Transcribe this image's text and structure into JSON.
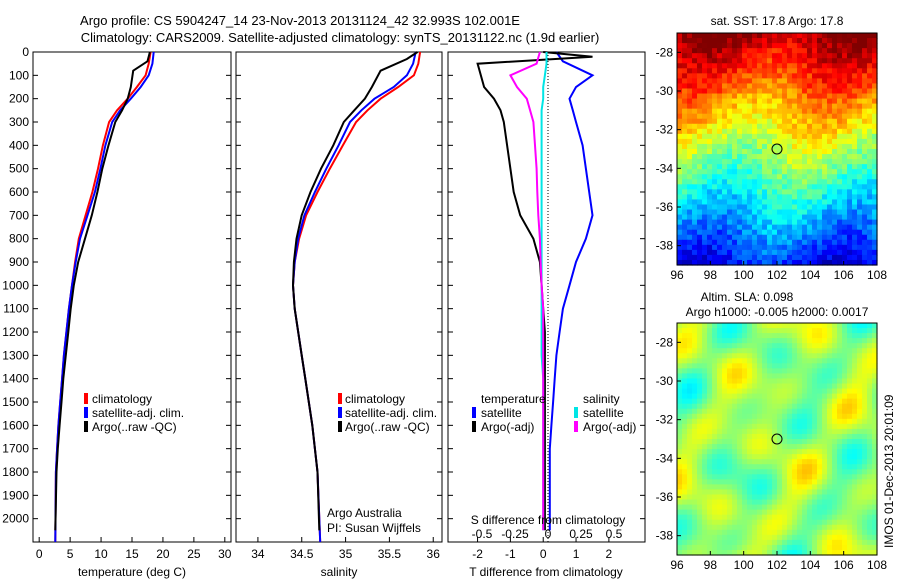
{
  "figure": {
    "title_line1": "Argo profile: CS 5904247_14 23-Nov-2013 20131124_42 32.993S 102.001E",
    "title_line2": "Climatology: CARS2009. Satellite-adjusted climatology: synTS_20131122.nc (1.9d earlier)",
    "side_stamp": "IMOS 01-Dec-2013 20:01:09",
    "attribution_line1": "Argo Australia",
    "attribution_line2": "PI: Susan Wijffels",
    "colors": {
      "climatology": "#ff0000",
      "satellite": "#0000ff",
      "argo": "#000000",
      "sal_satellite": "#00e5e5",
      "sal_argo": "#ff00ff"
    }
  },
  "chart_data": [
    {
      "type": "line",
      "panel": "temperature",
      "xlabel": "temperature (deg C)",
      "ylim": [
        2100,
        0
      ],
      "xlim": [
        -1,
        31
      ],
      "xticks": [
        0,
        5,
        10,
        15,
        20,
        25,
        30
      ],
      "yticks": [
        0,
        100,
        200,
        300,
        400,
        500,
        600,
        700,
        800,
        900,
        1000,
        1100,
        1200,
        1300,
        1400,
        1500,
        1600,
        1700,
        1800,
        1900,
        2000
      ],
      "legend": [
        "climatology",
        "satellite-adj. clim.",
        "Argo(..raw -QC)"
      ],
      "series": [
        {
          "name": "climatology",
          "x": [
            18,
            17.7,
            17.2,
            15.8,
            14.3,
            12.6,
            11.3,
            10.3,
            9.5,
            8.6,
            7.5,
            6.4,
            5.8,
            5.3,
            4.8,
            4.4,
            4.0,
            3.7,
            3.4,
            3.1,
            2.9,
            2.7,
            2.6
          ],
          "y": [
            0,
            50,
            100,
            150,
            200,
            250,
            300,
            400,
            500,
            600,
            700,
            800,
            900,
            1000,
            1100,
            1200,
            1300,
            1400,
            1500,
            1600,
            1700,
            1800,
            2100
          ]
        },
        {
          "name": "satellite-adj. clim.",
          "x": [
            18.5,
            18.3,
            17.7,
            16.4,
            14.8,
            13.1,
            11.8,
            10.7,
            9.9,
            9.0,
            7.8,
            6.6,
            5.9,
            5.3,
            4.8,
            4.4,
            4.0,
            3.7,
            3.4,
            3.1,
            2.9,
            2.7,
            2.6
          ],
          "y": [
            0,
            50,
            100,
            150,
            200,
            250,
            300,
            400,
            500,
            600,
            700,
            800,
            900,
            1000,
            1100,
            1200,
            1300,
            1400,
            1500,
            1600,
            1700,
            1800,
            2100
          ]
        },
        {
          "name": "Argo(..raw -QC)",
          "x": [
            17.9,
            17.5,
            15.2,
            14.8,
            14.3,
            13.4,
            12.3,
            11.2,
            10.2,
            9.4,
            8.5,
            7.4,
            6.3,
            5.6,
            5.1,
            4.7,
            4.3,
            3.9,
            3.6,
            3.3,
            3.0,
            2.8,
            2.6
          ],
          "y": [
            0,
            40,
            80,
            150,
            200,
            250,
            300,
            400,
            500,
            600,
            700,
            800,
            900,
            1000,
            1100,
            1200,
            1300,
            1400,
            1500,
            1600,
            1700,
            1800,
            2050
          ]
        }
      ]
    },
    {
      "type": "line",
      "panel": "salinity",
      "xlabel": "salinity",
      "ylim": [
        2100,
        0
      ],
      "xlim": [
        33.75,
        36.1
      ],
      "xticks": [
        34,
        34.5,
        35,
        35.5,
        36
      ],
      "legend": [
        "climatology",
        "satellite-adj. clim.",
        "Argo(..raw -QC)"
      ],
      "series": [
        {
          "name": "climatology",
          "x": [
            35.85,
            35.83,
            35.78,
            35.6,
            35.4,
            35.25,
            35.12,
            34.97,
            34.82,
            34.68,
            34.55,
            34.47,
            34.42,
            34.4,
            34.42,
            34.46,
            34.5,
            34.54,
            34.58,
            34.62,
            34.65,
            34.68,
            34.71
          ],
          "y": [
            0,
            50,
            100,
            150,
            200,
            250,
            300,
            400,
            500,
            600,
            700,
            800,
            900,
            1000,
            1100,
            1200,
            1300,
            1400,
            1500,
            1600,
            1700,
            1800,
            2100
          ]
        },
        {
          "name": "satellite-adj. clim.",
          "x": [
            35.8,
            35.77,
            35.7,
            35.55,
            35.33,
            35.18,
            35.05,
            34.92,
            34.78,
            34.65,
            34.53,
            34.46,
            34.42,
            34.4,
            34.42,
            34.46,
            34.5,
            34.54,
            34.58,
            34.62,
            34.65,
            34.68,
            34.71
          ],
          "y": [
            0,
            50,
            100,
            150,
            200,
            250,
            300,
            400,
            500,
            600,
            700,
            800,
            900,
            1000,
            1100,
            1200,
            1300,
            1400,
            1500,
            1600,
            1700,
            1800,
            2100
          ]
        },
        {
          "name": "Argo(..raw -QC)",
          "x": [
            35.82,
            35.7,
            35.4,
            35.3,
            35.22,
            35.1,
            34.98,
            34.86,
            34.72,
            34.6,
            34.5,
            34.44,
            34.41,
            34.4,
            34.42,
            34.46,
            34.5,
            34.54,
            34.58,
            34.62,
            34.65,
            34.68,
            34.7
          ],
          "y": [
            0,
            30,
            80,
            150,
            200,
            250,
            300,
            400,
            500,
            600,
            700,
            800,
            900,
            1000,
            1100,
            1200,
            1300,
            1400,
            1500,
            1600,
            1700,
            1800,
            2050
          ]
        }
      ]
    },
    {
      "type": "line",
      "panel": "difference",
      "xlabel": "T difference from climatology",
      "xlabel_top": "S difference from climatology",
      "ylim": [
        2100,
        0
      ],
      "xlim": [
        -2.9,
        3.1
      ],
      "xticks": [
        -2,
        -1,
        0,
        1,
        2
      ],
      "xticks_top": [
        "-0.5",
        "-0.25",
        "0",
        "0.25",
        "0.5"
      ],
      "legend_groups": [
        "temperature",
        "salinity"
      ],
      "legend": [
        "satellite",
        "Argo(-adj)",
        "satellite",
        "Argo(-adj)"
      ],
      "series": [
        {
          "name": "satellite",
          "x": [
            0.4,
            0.6,
            1.5,
            1.0,
            0.8,
            0.9,
            1.0,
            1.2,
            1.3,
            1.4,
            1.5,
            1.3,
            1.0,
            0.8,
            0.6,
            0.5,
            0.4,
            0.35,
            0.3,
            0.25,
            0.2,
            0.2,
            0.2
          ],
          "y": [
            0,
            40,
            100,
            150,
            200,
            250,
            300,
            400,
            500,
            600,
            700,
            800,
            900,
            1000,
            1100,
            1200,
            1300,
            1400,
            1500,
            1600,
            1700,
            1800,
            2050
          ]
        },
        {
          "name": "Argo(-adj)",
          "x": [
            0,
            1.5,
            -2.0,
            -1.8,
            -1.5,
            -1.3,
            -1.2,
            -1.1,
            -1.0,
            -0.9,
            -0.7,
            -0.3,
            -0.1,
            -0.05,
            0,
            0.05,
            0.05,
            0.05,
            0.05,
            0.05,
            0.05,
            0.05,
            0.05
          ],
          "y": [
            0,
            20,
            50,
            150,
            200,
            250,
            300,
            400,
            500,
            600,
            700,
            800,
            900,
            1000,
            1100,
            1200,
            1300,
            1400,
            1500,
            1600,
            1700,
            1800,
            2050
          ]
        },
        {
          "name": "satellite",
          "x": [
            0.1,
            0.1,
            0.05,
            0.0,
            0.0,
            -0.05,
            -0.05,
            -0.05,
            -0.05,
            -0.05,
            -0.05,
            -0.05,
            -0.05,
            -0.05,
            -0.05,
            -0.05,
            -0.05,
            0.0,
            0.0,
            0.0,
            0.0,
            0.0,
            0.0
          ],
          "y": [
            0,
            50,
            100,
            150,
            200,
            250,
            300,
            400,
            500,
            600,
            700,
            800,
            900,
            1000,
            1100,
            1200,
            1300,
            1400,
            1500,
            1600,
            1700,
            1800,
            2050
          ]
        },
        {
          "name": "Argo(-adj)",
          "x": [
            -0.1,
            -0.2,
            -1.0,
            -0.8,
            -0.5,
            -0.4,
            -0.3,
            -0.25,
            -0.2,
            -0.18,
            -0.15,
            -0.1,
            -0.08,
            -0.05,
            0,
            0,
            0,
            0,
            0,
            0,
            0,
            0,
            0
          ],
          "y": [
            0,
            50,
            100,
            150,
            200,
            250,
            300,
            400,
            500,
            600,
            700,
            800,
            900,
            1000,
            1100,
            1200,
            1300,
            1400,
            1500,
            1600,
            1700,
            1800,
            2050
          ]
        }
      ]
    },
    {
      "type": "heatmap",
      "panel": "sst-map",
      "title": "sat. SST: 17.8 Argo: 17.8",
      "xlim": [
        96,
        108
      ],
      "ylim": [
        -39,
        -27
      ],
      "xticks": [
        96,
        98,
        100,
        102,
        104,
        106,
        108
      ],
      "yticks": [
        -28,
        -30,
        -32,
        -34,
        -36,
        -38
      ],
      "marker": {
        "lon": 102.0,
        "lat": -33.0
      }
    },
    {
      "type": "heatmap",
      "panel": "sla-map",
      "title_line1": "Altim. SLA: 0.098",
      "title_line2": "Argo h1000: -0.005 h2000: 0.0017",
      "xlim": [
        96,
        108
      ],
      "ylim": [
        -39,
        -27
      ],
      "xticks": [
        96,
        98,
        100,
        102,
        104,
        106,
        108
      ],
      "yticks": [
        -28,
        -30,
        -32,
        -34,
        -36,
        -38
      ],
      "marker": {
        "lon": 102.0,
        "lat": -33.0
      }
    }
  ]
}
